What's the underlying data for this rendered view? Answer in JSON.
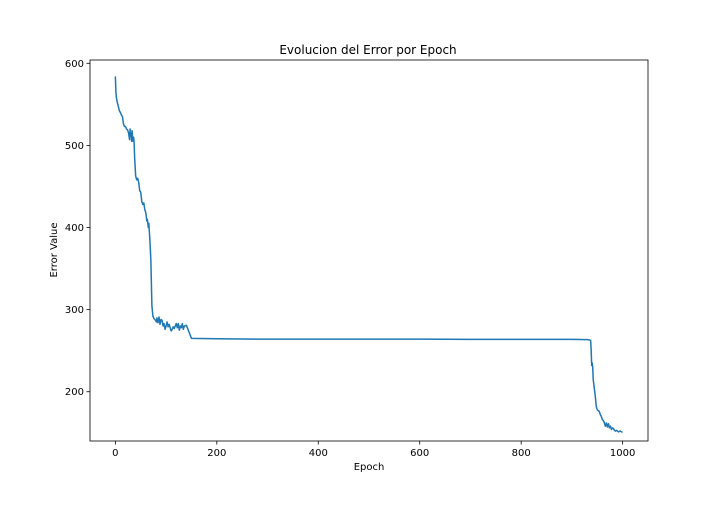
{
  "chart_data": {
    "type": "line",
    "title": "Evolucion del Error por Epoch",
    "xlabel": "Epoch",
    "ylabel": "Error Value",
    "xlim": [
      -50,
      1050
    ],
    "ylim": [
      140,
      604
    ],
    "xticks": [
      0,
      200,
      400,
      600,
      800,
      1000
    ],
    "yticks": [
      200,
      300,
      400,
      500,
      600
    ],
    "grid": false,
    "line_color": "#1f77b4",
    "series": [
      {
        "x": [
          0,
          1,
          2,
          4,
          6,
          8,
          10,
          12,
          14,
          16,
          18,
          20,
          22,
          24,
          26,
          28,
          29,
          30,
          31,
          32,
          33,
          34,
          35,
          36,
          37,
          38,
          40,
          42,
          44,
          46,
          48,
          50,
          52,
          54,
          56,
          58,
          60,
          62,
          63,
          64,
          65,
          66,
          68,
          70,
          72,
          74,
          76,
          78,
          79,
          80,
          81,
          82,
          84,
          86,
          88,
          90,
          92,
          94,
          96,
          98,
          100,
          102,
          104,
          106,
          108,
          110,
          112,
          114,
          116,
          118,
          120,
          122,
          124,
          126,
          128,
          130,
          132,
          134,
          136,
          140,
          150,
          200,
          300,
          400,
          500,
          600,
          700,
          800,
          900,
          930,
          935,
          937,
          938,
          939,
          940,
          941,
          942,
          944,
          946,
          948,
          950,
          952,
          954,
          956,
          958,
          960,
          962,
          964,
          966,
          968,
          970,
          972,
          974,
          976,
          978,
          980,
          982,
          984,
          986,
          988,
          990,
          992,
          994,
          996,
          998,
          1000
        ],
        "y": [
          584,
          566,
          558,
          552,
          547,
          542,
          540,
          537,
          535,
          526,
          523,
          523,
          520,
          519,
          515,
          507,
          520,
          512,
          515,
          505,
          518,
          509,
          505,
          510,
          503,
          485,
          463,
          458,
          460,
          455,
          445,
          443,
          432,
          428,
          430,
          422,
          418,
          408,
          410,
          405,
          400,
          405,
          385,
          360,
          305,
          292,
          289,
          288,
          287,
          286,
          285,
          290,
          284,
          291,
          282,
          288,
          287,
          280,
          283,
          276,
          280,
          285,
          279,
          282,
          278,
          274,
          276,
          279,
          277,
          280,
          283,
          278,
          283,
          275,
          280,
          278,
          283,
          276,
          280,
          281,
          265,
          264.5,
          264,
          264,
          264,
          264,
          263.8,
          263.8,
          263.8,
          263.5,
          263,
          262,
          250,
          232,
          235,
          230,
          215,
          205,
          195,
          182,
          178,
          177,
          176,
          172,
          170,
          166,
          165,
          162,
          158,
          162,
          157,
          161,
          156,
          158,
          154,
          156,
          155,
          153,
          152,
          153,
          152,
          151,
          152,
          152,
          151,
          151
        ]
      }
    ]
  }
}
